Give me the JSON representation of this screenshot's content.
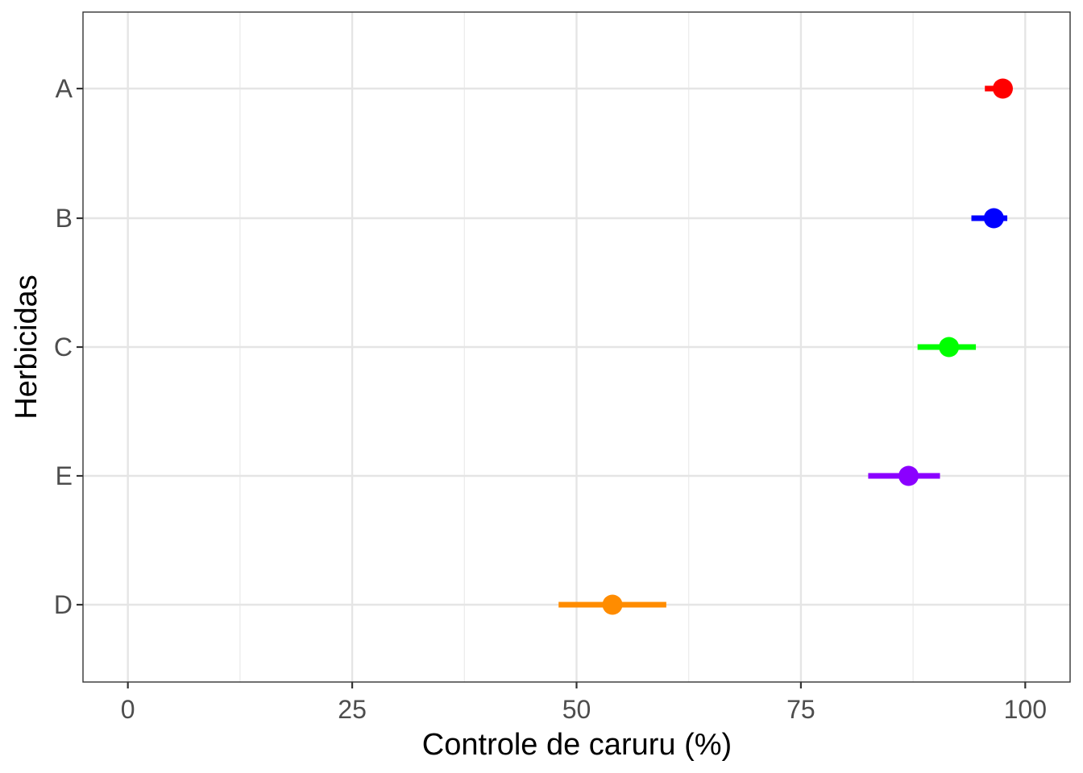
{
  "chart_data": {
    "type": "scatter",
    "subtype": "point-range",
    "title": "",
    "xlabel": "Controle de caruru (%)",
    "ylabel": "Herbicidas",
    "xlim": [
      -5,
      105
    ],
    "x_ticks": [
      0,
      25,
      50,
      75,
      100
    ],
    "x_tick_labels": [
      "0",
      "25",
      "50",
      "75",
      "100"
    ],
    "categories": [
      "A",
      "B",
      "C",
      "E",
      "D"
    ],
    "grid": true,
    "legend": "none",
    "points": [
      {
        "category": "A",
        "value": 97.5,
        "lower": 95.5,
        "upper": 97.5,
        "color": "#ff0000"
      },
      {
        "category": "B",
        "value": 96.5,
        "lower": 94.0,
        "upper": 98.0,
        "color": "#0000ff"
      },
      {
        "category": "C",
        "value": 91.5,
        "lower": 88.0,
        "upper": 94.5,
        "color": "#00ff00"
      },
      {
        "category": "E",
        "value": 87.0,
        "lower": 82.5,
        "upper": 90.5,
        "color": "#8b00ff"
      },
      {
        "category": "D",
        "value": 54.0,
        "lower": 48.0,
        "upper": 60.0,
        "color": "#ff8c00"
      }
    ]
  }
}
